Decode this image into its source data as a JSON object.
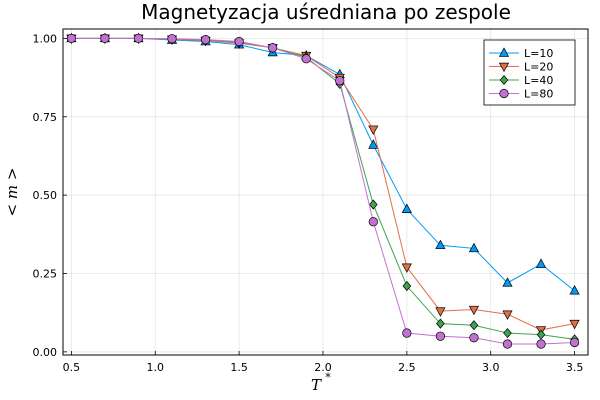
{
  "chart_data": {
    "type": "line",
    "title": "Magnetyzacja uśredniana po zespole",
    "xlabel": "T*",
    "ylabel": "< m >",
    "xlim": [
      0.45,
      3.58
    ],
    "ylim": [
      -0.01,
      1.03
    ],
    "xticks": [
      0.5,
      1.0,
      1.5,
      2.0,
      2.5,
      3.0,
      3.5
    ],
    "xtick_labels": [
      "0.5",
      "1.0",
      "1.5",
      "2.0",
      "2.5",
      "3.0",
      "3.5"
    ],
    "yticks": [
      0.0,
      0.25,
      0.5,
      0.75,
      1.0
    ],
    "ytick_labels": [
      "0.00",
      "0.25",
      "0.50",
      "0.75",
      "1.00"
    ],
    "grid": true,
    "legend_position": "top-right",
    "x": [
      0.5,
      0.7,
      0.9,
      1.1,
      1.3,
      1.5,
      1.7,
      1.9,
      2.1,
      2.3,
      2.5,
      2.7,
      2.9,
      3.1,
      3.3,
      3.5
    ],
    "series": [
      {
        "name": "L=10",
        "color": "#009af9",
        "marker": "triangle-up",
        "values": [
          1.0,
          1.0,
          1.0,
          0.995,
          0.99,
          0.98,
          0.955,
          0.945,
          0.885,
          0.66,
          0.455,
          0.34,
          0.33,
          0.22,
          0.28,
          0.195
        ]
      },
      {
        "name": "L=20",
        "color": "#e26f46",
        "marker": "triangle-down",
        "values": [
          1.0,
          1.0,
          1.0,
          0.997,
          0.993,
          0.985,
          0.97,
          0.945,
          0.875,
          0.71,
          0.27,
          0.13,
          0.135,
          0.12,
          0.07,
          0.09
        ]
      },
      {
        "name": "L=40",
        "color": "#3da44d",
        "marker": "diamond",
        "values": [
          1.0,
          1.0,
          1.0,
          0.998,
          0.995,
          0.988,
          0.97,
          0.94,
          0.855,
          0.47,
          0.21,
          0.09,
          0.085,
          0.06,
          0.055,
          0.04
        ]
      },
      {
        "name": "L=80",
        "color": "#c271d2",
        "marker": "circle",
        "values": [
          1.0,
          1.0,
          1.0,
          0.999,
          0.996,
          0.99,
          0.97,
          0.935,
          0.865,
          0.415,
          0.06,
          0.05,
          0.045,
          0.025,
          0.025,
          0.03
        ]
      }
    ]
  }
}
